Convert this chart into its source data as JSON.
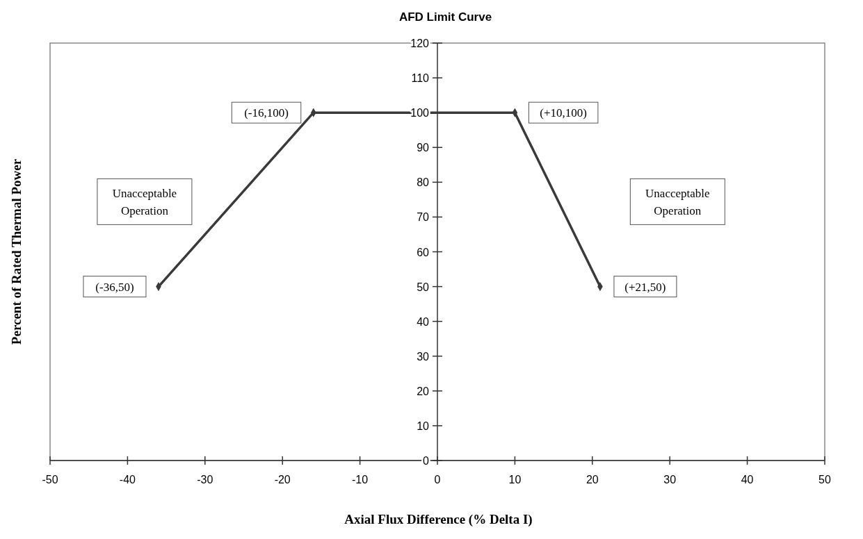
{
  "chart_data": {
    "type": "line",
    "title": "AFD Limit Curve",
    "xlabel": "Axial Flux Difference (% Delta I)",
    "ylabel": "Percent of Rated Thermal Power",
    "x": [
      -36,
      -16,
      10,
      21
    ],
    "series": [
      {
        "color": "#3a3a3a",
        "values": [
          50,
          100,
          100,
          50
        ]
      }
    ],
    "xlim": [
      -50,
      50
    ],
    "xticks": [
      -50,
      -40,
      -30,
      -20,
      -10,
      0,
      10,
      20,
      30,
      40,
      50
    ],
    "ylim": [
      0,
      120
    ],
    "yticks": [
      0,
      10,
      20,
      30,
      40,
      50,
      60,
      70,
      80,
      90,
      100,
      110,
      120
    ],
    "grid": false,
    "marker": "diamond",
    "line_style": "solid",
    "annotations": [
      "Unacceptable Operation",
      "Unacceptable Operation",
      {
        "text": "(-36,50)",
        "x": -36,
        "y": 50
      },
      {
        "text": "(-16,100)",
        "x": -16,
        "y": 100
      },
      {
        "text": "(+10,100)",
        "x": 10,
        "y": 100
      },
      {
        "text": "(+21,50)",
        "x": 21,
        "y": 50
      }
    ]
  }
}
